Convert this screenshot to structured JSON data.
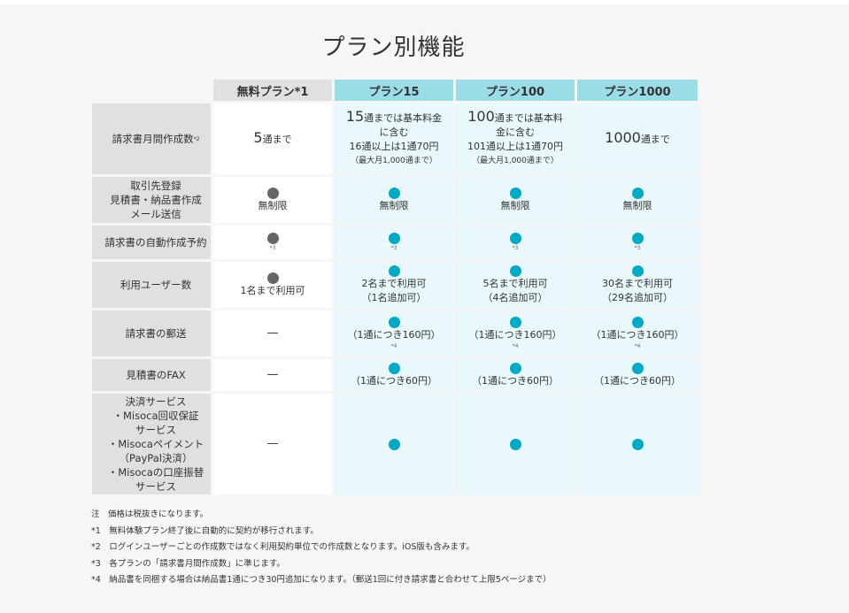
{
  "title": "プラン別機能",
  "plans": [
    "無料プラン*1",
    "プラン15",
    "プラン100",
    "プラン1000"
  ],
  "colors": {
    "teal_dot": "#00a9c5",
    "gray_dot": "#666666",
    "paid_header": "#9adde6",
    "paid_cell": "#e8f8fb",
    "label_bg": "#e0e0e0"
  },
  "rows": {
    "invoices": {
      "label": "請求書月間作成数",
      "label_note": "*2",
      "free": {
        "num": "5",
        "suffix": "通まで"
      },
      "p15": {
        "num": "15",
        "line1_suffix": "通までは基本料金",
        "line2": "に含む",
        "line3": "16通以上は1通70円",
        "line4": "（最大月1,000通まで）"
      },
      "p100": {
        "num": "100",
        "line1_suffix": "通までは基本料",
        "line2": "金に含む",
        "line3": "101通以上は1通70円",
        "line4": "（最大月1,000通まで）"
      },
      "p1000": {
        "num": "1000",
        "suffix": "通まで"
      }
    },
    "basics": {
      "label_lines": [
        "取引先登録",
        "見積書・納品書作成",
        "メール送信"
      ],
      "value": "無制限"
    },
    "auto": {
      "label": "請求書の自動作成予約",
      "note": "*3"
    },
    "users": {
      "label": "利用ユーザー数",
      "free": "1名まで利用可",
      "p15": [
        "2名まで利用可",
        "（1名追加可）"
      ],
      "p100": [
        "5名まで利用可",
        "（4名追加可）"
      ],
      "p1000": [
        "30名まで利用可",
        "（29名追加可）"
      ]
    },
    "mail": {
      "label": "請求書の郵送",
      "free": "—",
      "paid": "（1通につき160円）",
      "note": "*4"
    },
    "fax": {
      "label": "見積書のFAX",
      "free": "—",
      "paid": "（1通につき60円）"
    },
    "payment": {
      "label_lines": [
        "決済サービス",
        "・Misoca回収保証",
        "サービス",
        "・Misocaペイメント",
        "（PayPal決済）",
        "・Misocaの口座振替",
        "サービス"
      ],
      "free": "—"
    }
  },
  "notes": [
    "注　価格は税抜きになります。",
    "*1　無料体験プラン終了後に自動的に契約が移行されます。",
    "*2　ログインユーザーごとの作成数ではなく利用契約単位での作成数となります。iOS版も含みます。",
    "*3　各プランの「請求書月間作成数」に準じます。",
    "*4　納品書を同梱する場合は納品書1通につき30円追加になります。（郵送1回に付き請求書と合わせて上限5ページまで）"
  ]
}
